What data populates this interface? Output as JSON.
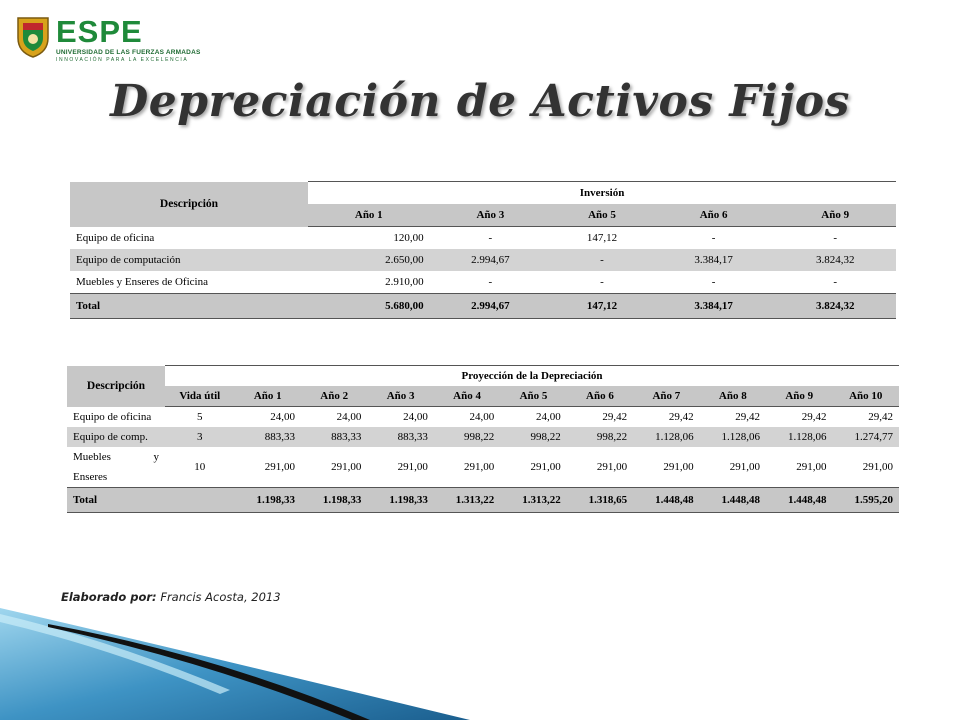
{
  "logo": {
    "brand": "ESPE",
    "line1": "UNIVERSIDAD DE LAS FUERZAS ARMADAS",
    "line2": "INNOVACIÓN PARA LA EXCELENCIA",
    "colors": {
      "green": "#1f8a3a",
      "gold": "#d8a21b",
      "red": "#c0282d"
    }
  },
  "title": "Depreciación de Activos Fijos",
  "investment_table": {
    "description_header": "Descripción",
    "group_header": "Inversión",
    "columns": [
      "Año 1",
      "Año 3",
      "Año 5",
      "Año 6",
      "Año 9"
    ],
    "rows": [
      {
        "label": "Equipo de oficina",
        "values": [
          "120,00",
          "-",
          "147,12",
          "-",
          "-"
        ]
      },
      {
        "label": "Equipo de computación",
        "values": [
          "2.650,00",
          "2.994,67",
          "-",
          "3.384,17",
          "3.824,32"
        ]
      },
      {
        "label": "Muebles y Enseres de Oficina",
        "values": [
          "2.910,00",
          "-",
          "-",
          "-",
          "-"
        ]
      }
    ],
    "total": {
      "label": "Total",
      "values": [
        "5.680,00",
        "2.994,67",
        "147,12",
        "3.384,17",
        "3.824,32"
      ]
    }
  },
  "depreciation_table": {
    "description_header": "Descripción",
    "group_header": "Proyección de la Depreciación",
    "columns": [
      "Vida útil",
      "Año 1",
      "Año 2",
      "Año 3",
      "Año 4",
      "Año 5",
      "Año 6",
      "Año 7",
      "Año 8",
      "Año 9",
      "Año 10"
    ],
    "rows": [
      {
        "label": "Equipo de oficina",
        "values": [
          "5",
          "24,00",
          "24,00",
          "24,00",
          "24,00",
          "24,00",
          "29,42",
          "29,42",
          "29,42",
          "29,42",
          "29,42"
        ]
      },
      {
        "label": "Equipo de comp.",
        "values": [
          "3",
          "883,33",
          "883,33",
          "883,33",
          "998,22",
          "998,22",
          "998,22",
          "1.128,06",
          "1.128,06",
          "1.128,06",
          "1.274,77"
        ]
      },
      {
        "label_a": "Muebles",
        "label_b": "y",
        "label_c": "Enseres",
        "values": [
          "10",
          "291,00",
          "291,00",
          "291,00",
          "291,00",
          "291,00",
          "291,00",
          "291,00",
          "291,00",
          "291,00",
          "291,00"
        ]
      }
    ],
    "total": {
      "label": "Total",
      "values": [
        "",
        "1.198,33",
        "1.198,33",
        "1.198,33",
        "1.313,22",
        "1.313,22",
        "1.318,65",
        "1.448,48",
        "1.448,48",
        "1.448,48",
        "1.595,20"
      ]
    }
  },
  "credit": {
    "label": "Elaborado por:",
    "author": "Francis Acosta, 2013"
  },
  "decor_colors": {
    "light_blue": "#7cc4e4",
    "mid_blue": "#2f86b7",
    "dark_blue": "#1b5f8f"
  }
}
